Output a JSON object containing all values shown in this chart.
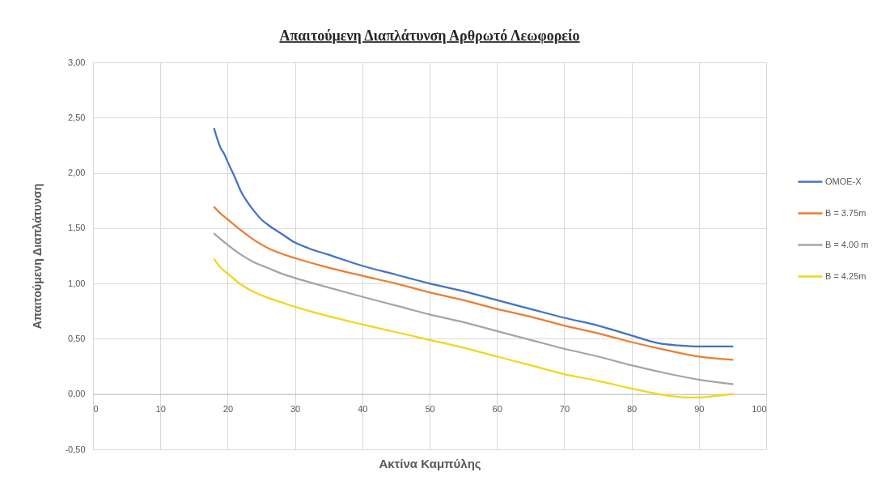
{
  "chart_data": {
    "type": "line",
    "title": "Απαιτούμενη Διαπλάτυνση Αρθρωτό Λεωφορείο",
    "xlabel": "Ακτίνα Καμπύλης",
    "ylabel": "Απαιτούμενη Διαπλάτυνση",
    "xlim": [
      0,
      100
    ],
    "xticks": [
      0,
      10,
      20,
      30,
      40,
      50,
      60,
      70,
      80,
      90,
      100
    ],
    "ylim": [
      -0.5,
      3
    ],
    "yticks": [
      {
        "value": -0.5,
        "label": "-0,50"
      },
      {
        "value": 0,
        "label": "0,00"
      },
      {
        "value": 0.5,
        "label": "0,50"
      },
      {
        "value": 1,
        "label": "1,00"
      },
      {
        "value": 1.5,
        "label": "1,50"
      },
      {
        "value": 2,
        "label": "2,00"
      },
      {
        "value": 2.5,
        "label": "2,50"
      },
      {
        "value": 3,
        "label": "3,00"
      }
    ],
    "grid": true,
    "legend": "right",
    "series": [
      {
        "name": "ΟΜΟΕ-Χ",
        "color": "#4472c4",
        "x": [
          18,
          18.5,
          19,
          19.5,
          20,
          21,
          22,
          23,
          24,
          25,
          26,
          28,
          30,
          32,
          35,
          40,
          45,
          50,
          55,
          60,
          65,
          70,
          75,
          80,
          84,
          87,
          90,
          95
        ],
        "values": [
          2.4,
          2.3,
          2.22,
          2.17,
          2.1,
          1.97,
          1.83,
          1.73,
          1.65,
          1.58,
          1.53,
          1.45,
          1.37,
          1.32,
          1.26,
          1.16,
          1.08,
          1.0,
          0.93,
          0.85,
          0.77,
          0.69,
          0.62,
          0.53,
          0.46,
          0.44,
          0.43,
          0.43
        ]
      },
      {
        "name": "B = 3.75m",
        "color": "#ed7d31",
        "x": [
          18,
          19,
          20,
          22,
          24,
          26,
          28,
          30,
          34,
          40,
          45,
          50,
          55,
          60,
          65,
          70,
          75,
          80,
          85,
          90,
          95
        ],
        "values": [
          1.69,
          1.63,
          1.58,
          1.48,
          1.39,
          1.32,
          1.27,
          1.23,
          1.16,
          1.07,
          1.0,
          0.92,
          0.85,
          0.77,
          0.7,
          0.62,
          0.55,
          0.47,
          0.4,
          0.34,
          0.31
        ]
      },
      {
        "name": "B = 4.00 m",
        "color": "#a5a5a5",
        "x": [
          18,
          19,
          20,
          22,
          24,
          26,
          28,
          30,
          34,
          40,
          45,
          50,
          55,
          60,
          65,
          70,
          75,
          80,
          85,
          90,
          95
        ],
        "values": [
          1.45,
          1.4,
          1.35,
          1.26,
          1.19,
          1.14,
          1.09,
          1.05,
          0.98,
          0.88,
          0.8,
          0.72,
          0.65,
          0.57,
          0.49,
          0.41,
          0.34,
          0.26,
          0.19,
          0.13,
          0.09
        ]
      },
      {
        "name": "B = 4.25m",
        "color": "#f2d61c",
        "x": [
          18,
          19,
          20,
          22,
          24,
          26,
          28,
          30,
          34,
          40,
          45,
          50,
          55,
          60,
          65,
          70,
          75,
          80,
          84,
          86,
          88,
          90,
          92,
          95
        ],
        "values": [
          1.22,
          1.14,
          1.09,
          0.99,
          0.92,
          0.87,
          0.83,
          0.79,
          0.72,
          0.63,
          0.56,
          0.49,
          0.42,
          0.34,
          0.26,
          0.18,
          0.12,
          0.05,
          0.0,
          -0.02,
          -0.03,
          -0.03,
          -0.02,
          0.0
        ]
      }
    ]
  }
}
